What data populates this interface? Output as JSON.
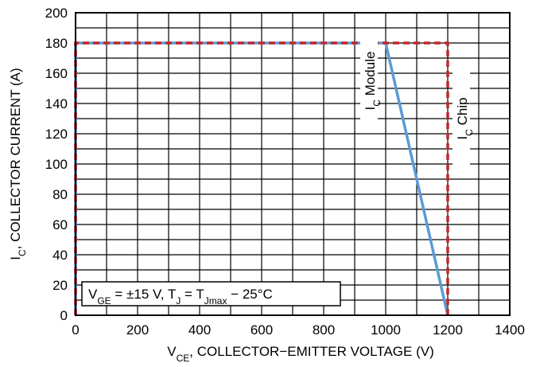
{
  "chart_data": {
    "type": "line",
    "xlabel": {
      "main": "V",
      "sub": "CE",
      "rest": ", COLLECTOR−EMITTER VOLTAGE (V)"
    },
    "ylabel": {
      "main": "I",
      "sub": "C",
      "rest": ", COLLECTOR CURRENT (A)"
    },
    "xlim": [
      0,
      1400
    ],
    "ylim": [
      0,
      200
    ],
    "x_ticks": [
      0,
      200,
      400,
      600,
      800,
      1000,
      1200,
      1400
    ],
    "y_ticks": [
      0,
      20,
      40,
      60,
      80,
      100,
      120,
      140,
      160,
      180,
      200
    ],
    "x_grid_step": 100,
    "y_grid_step": 10,
    "grid": true,
    "series": [
      {
        "name": "Module",
        "label_main": "I",
        "label_sub": "C",
        "label_rest": " Module",
        "color": "#5b9bd5",
        "style": "solid",
        "x": [
          0,
          0,
          1000,
          1200
        ],
        "y": [
          0,
          180,
          180,
          0
        ]
      },
      {
        "name": "Chip",
        "label_main": "I",
        "label_sub": "C",
        "label_rest": " Chip",
        "color": "#c0282d",
        "style": "dashed",
        "x": [
          0,
          0,
          1200,
          1200
        ],
        "y": [
          0,
          180,
          180,
          0
        ]
      }
    ],
    "condition": {
      "parts": [
        {
          "t": "V"
        },
        {
          "t": "GE",
          "sub": true
        },
        {
          "t": " = ±15 V, T"
        },
        {
          "t": "J",
          "sub": true
        },
        {
          "t": " = T"
        },
        {
          "t": "Jmax",
          "sub": true
        },
        {
          "t": " − 25°C"
        }
      ]
    }
  }
}
